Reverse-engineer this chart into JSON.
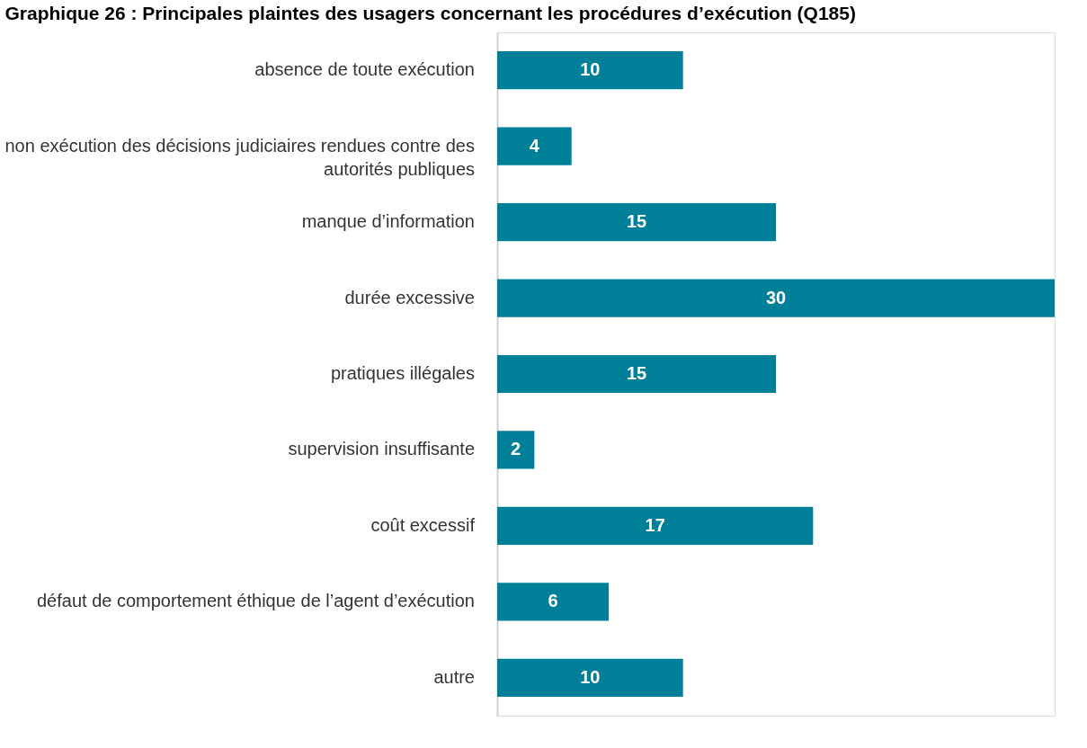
{
  "chart_data": {
    "type": "bar",
    "orientation": "horizontal",
    "title": "Graphique 26 : Principales plaintes des usagers concernant les procédures d’exécution (Q185)",
    "categories": [
      "absence de toute exécution",
      "non exécution des décisions judiciaires rendues contre des autorités publiques",
      "manque d’information",
      "durée excessive",
      "pratiques illégales",
      "supervision insuffisante",
      "coût excessif",
      "défaut de comportement éthique de l’agent d’exécution",
      "autre"
    ],
    "values": [
      10,
      4,
      15,
      30,
      15,
      2,
      17,
      6,
      10
    ],
    "color": "#007f99",
    "data_labels": true
  }
}
